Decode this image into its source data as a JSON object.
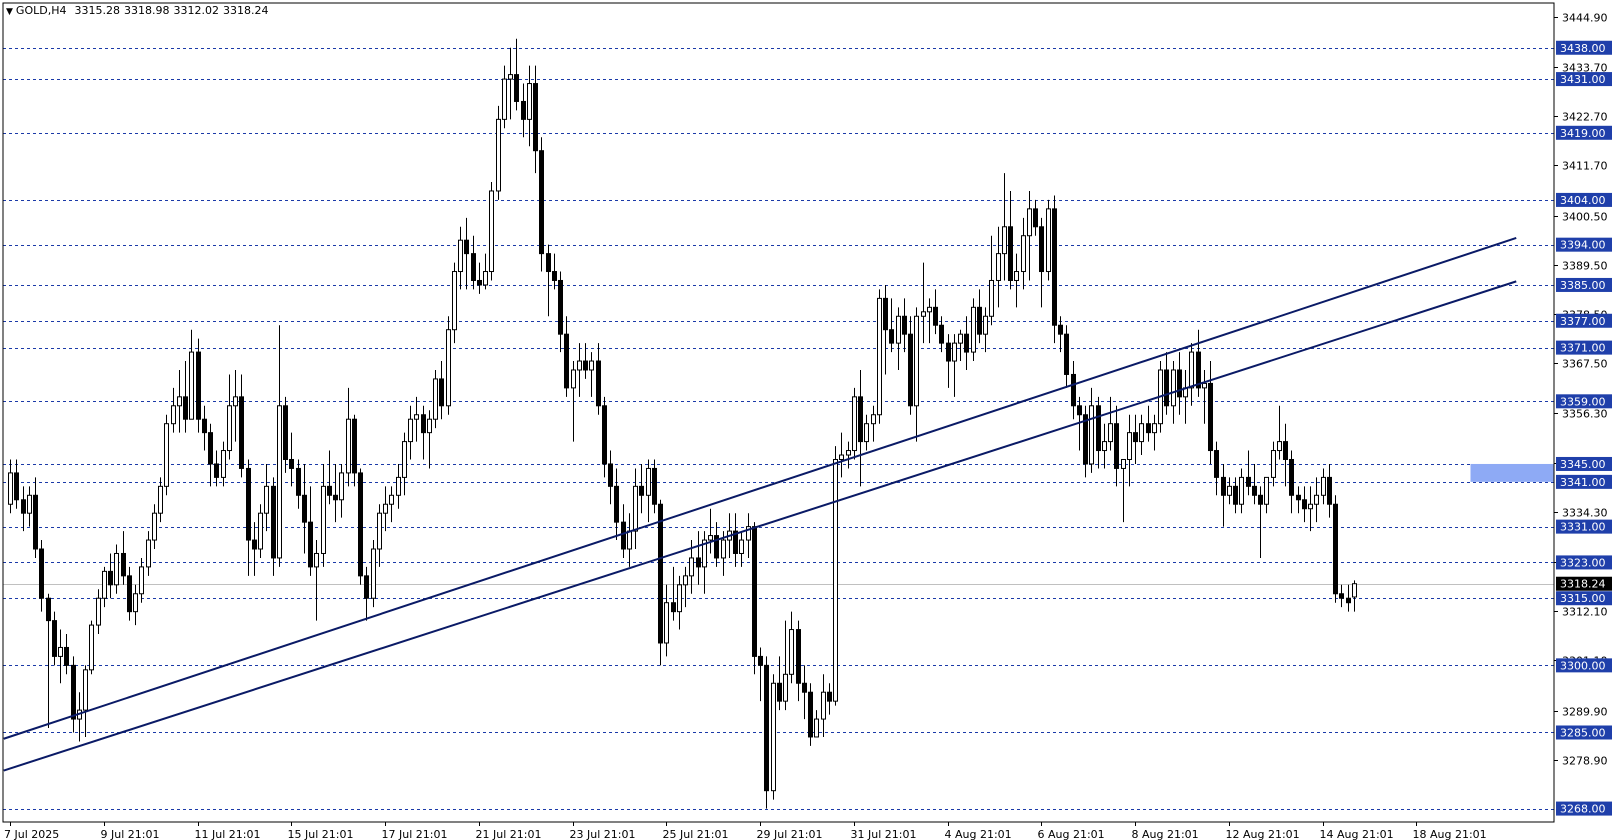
{
  "header": {
    "symbol": "GOLD,H4",
    "open": "3315.28",
    "high": "3318.98",
    "low": "3312.02",
    "close": "3318.24"
  },
  "chart_data": {
    "type": "candlestick",
    "ylim": [
      3265.0,
      3448.0
    ],
    "price_ticks": [
      "3444.90",
      "3433.70",
      "3422.70",
      "3411.70",
      "3400.50",
      "3389.50",
      "3378.50",
      "3367.50",
      "3356.30",
      "3345.30",
      "3334.30",
      "3323.20",
      "3312.10",
      "3301.10",
      "3289.90",
      "3278.90"
    ],
    "levels": [
      3438.0,
      3431.0,
      3419.0,
      3404.0,
      3394.0,
      3385.0,
      3377.0,
      3371.0,
      3359.0,
      3345.0,
      3341.0,
      3331.0,
      3323.0,
      3315.0,
      3300.0,
      3285.0,
      3268.0
    ],
    "level_labels": [
      "3438.00",
      "3431.00",
      "3419.00",
      "3404.00",
      "3394.00",
      "3385.00",
      "3377.00",
      "3371.00",
      "3359.00",
      "3345.00",
      "3341.00",
      "3331.00",
      "3323.00",
      "3315.00",
      "3300.00",
      "3285.00",
      "3268.00"
    ],
    "current_price": 3318.24,
    "current_label": "3318.24",
    "zone": {
      "from": 3341.0,
      "to": 3345.0,
      "start_index": 234
    },
    "dates": [
      "7 Jul 2025",
      "9 Jul 21:01",
      "11 Jul 21:01",
      "15 Jul 21:01",
      "17 Jul 21:01",
      "21 Jul 21:01",
      "23 Jul 21:01",
      "25 Jul 21:01",
      "29 Jul 21:01",
      "31 Jul 21:01",
      "4 Aug 21:01",
      "6 Aug 21:01",
      "8 Aug 21:01",
      "12 Aug 21:01",
      "14 Aug 21:01",
      "18 Aug 21:01"
    ],
    "date_index": [
      0,
      15,
      30,
      45,
      60,
      75,
      90,
      105,
      120,
      135,
      150,
      165,
      180,
      195,
      210,
      225
    ],
    "trendlines": [
      {
        "p1": {
          "i": -1,
          "price": 3283.6
        },
        "p2": {
          "i": 241,
          "price": 3395.5
        }
      },
      {
        "p1": {
          "i": -1,
          "price": 3276.5
        },
        "p2": {
          "i": 241,
          "price": 3385.8
        }
      }
    ],
    "candles_ohlc": [
      [
        3336.0,
        3346.0,
        3334.0,
        3343.0
      ],
      [
        3343.0,
        3346.0,
        3335.0,
        3337.0
      ],
      [
        3337.0,
        3340.0,
        3330.0,
        3334.0
      ],
      [
        3334.0,
        3340.0,
        3331.0,
        3338.0
      ],
      [
        3338.0,
        3342.0,
        3324.0,
        3326.0
      ],
      [
        3326.0,
        3328.0,
        3312.0,
        3315.0
      ],
      [
        3315.0,
        3316.0,
        3286.0,
        3310.0
      ],
      [
        3310.0,
        3312.0,
        3300.0,
        3302.0
      ],
      [
        3302.0,
        3308.0,
        3296.0,
        3304.0
      ],
      [
        3304.0,
        3307.0,
        3298.0,
        3300.0
      ],
      [
        3300.0,
        3302.0,
        3285.0,
        3288.0
      ],
      [
        3288.0,
        3294.0,
        3283.0,
        3290.0
      ],
      [
        3290.0,
        3300.0,
        3284.0,
        3299.0
      ],
      [
        3299.0,
        3310.0,
        3298.0,
        3309.0
      ],
      [
        3309.0,
        3317.0,
        3307.0,
        3315.0
      ],
      [
        3315.0,
        3322.0,
        3313.0,
        3321.0
      ],
      [
        3321.0,
        3325.0,
        3315.0,
        3318.0
      ],
      [
        3318.0,
        3327.0,
        3316.0,
        3325.0
      ],
      [
        3325.0,
        3330.0,
        3318.0,
        3320.0
      ],
      [
        3320.0,
        3322.0,
        3310.0,
        3312.0
      ],
      [
        3312.0,
        3318.0,
        3309.0,
        3316.0
      ],
      [
        3316.0,
        3324.0,
        3314.0,
        3322.0
      ],
      [
        3322.0,
        3330.0,
        3320.0,
        3328.0
      ],
      [
        3328.0,
        3336.0,
        3326.0,
        3334.0
      ],
      [
        3334.0,
        3342.0,
        3332.0,
        3340.0
      ],
      [
        3340.0,
        3356.0,
        3338.0,
        3354.0
      ],
      [
        3354.0,
        3362.0,
        3352.0,
        3358.0
      ],
      [
        3358.0,
        3366.0,
        3352.0,
        3360.0
      ],
      [
        3360.0,
        3368.0,
        3352.0,
        3355.0
      ],
      [
        3355.0,
        3375.0,
        3355.0,
        3370.0
      ],
      [
        3370.0,
        3373.0,
        3352.0,
        3355.0
      ],
      [
        3355.0,
        3358.0,
        3348.0,
        3352.0
      ],
      [
        3352.0,
        3354.0,
        3340.0,
        3345.0
      ],
      [
        3345.0,
        3348.0,
        3340.0,
        3342.0
      ],
      [
        3342.0,
        3350.0,
        3340.0,
        3348.0
      ],
      [
        3348.0,
        3365.0,
        3346.0,
        3358.0
      ],
      [
        3358.0,
        3366.0,
        3350.0,
        3360.0
      ],
      [
        3360.0,
        3365.0,
        3342.0,
        3344.0
      ],
      [
        3344.0,
        3346.0,
        3320.0,
        3328.0
      ],
      [
        3328.0,
        3332.0,
        3320.0,
        3326.0
      ],
      [
        3326.0,
        3336.0,
        3324.0,
        3334.0
      ],
      [
        3334.0,
        3345.0,
        3330.0,
        3340.0
      ],
      [
        3340.0,
        3342.0,
        3320.0,
        3324.0
      ],
      [
        3324.0,
        3376.0,
        3322.0,
        3358.0
      ],
      [
        3358.0,
        3360.0,
        3343.0,
        3346.0
      ],
      [
        3346.0,
        3352.0,
        3340.0,
        3344.0
      ],
      [
        3344.0,
        3346.0,
        3335.0,
        3338.0
      ],
      [
        3338.0,
        3345.0,
        3325.0,
        3332.0
      ],
      [
        3332.0,
        3340.0,
        3320.0,
        3322.0
      ],
      [
        3322.0,
        3328.0,
        3310.0,
        3325.0
      ],
      [
        3325.0,
        3345.0,
        3322.0,
        3340.0
      ],
      [
        3340.0,
        3348.0,
        3336.0,
        3338.0
      ],
      [
        3338.0,
        3345.0,
        3332.0,
        3337.0
      ],
      [
        3337.0,
        3345.0,
        3333.0,
        3343.0
      ],
      [
        3343.0,
        3362.0,
        3340.0,
        3355.0
      ],
      [
        3355.0,
        3356.0,
        3340.0,
        3343.0
      ],
      [
        3343.0,
        3344.0,
        3318.0,
        3320.0
      ],
      [
        3320.0,
        3322.0,
        3310.0,
        3315.0
      ],
      [
        3315.0,
        3328.0,
        3313.0,
        3326.0
      ],
      [
        3326.0,
        3336.0,
        3322.0,
        3334.0
      ],
      [
        3334.0,
        3340.0,
        3330.0,
        3336.0
      ],
      [
        3336.0,
        3340.0,
        3332.0,
        3338.0
      ],
      [
        3338.0,
        3345.0,
        3335.0,
        3342.0
      ],
      [
        3342.0,
        3352.0,
        3338.0,
        3350.0
      ],
      [
        3350.0,
        3358.0,
        3346.0,
        3355.0
      ],
      [
        3355.0,
        3360.0,
        3350.0,
        3356.0
      ],
      [
        3356.0,
        3358.0,
        3346.0,
        3352.0
      ],
      [
        3352.0,
        3357.0,
        3344.0,
        3355.0
      ],
      [
        3355.0,
        3366.0,
        3353.0,
        3364.0
      ],
      [
        3364.0,
        3368.0,
        3355.0,
        3358.0
      ],
      [
        3358.0,
        3378.0,
        3356.0,
        3375.0
      ],
      [
        3375.0,
        3390.0,
        3372.0,
        3388.0
      ],
      [
        3388.0,
        3398.0,
        3384.0,
        3395.0
      ],
      [
        3395.0,
        3400.0,
        3384.0,
        3392.0
      ],
      [
        3392.0,
        3396.0,
        3384.0,
        3386.0
      ],
      [
        3386.0,
        3390.0,
        3383.0,
        3385.0
      ],
      [
        3385.0,
        3392.0,
        3384.0,
        3388.0
      ],
      [
        3388.0,
        3408.0,
        3386.0,
        3406.0
      ],
      [
        3406.0,
        3425.0,
        3404.0,
        3422.0
      ],
      [
        3422.0,
        3434.0,
        3420.0,
        3431.0
      ],
      [
        3431.0,
        3438.0,
        3422.0,
        3432.0
      ],
      [
        3432.0,
        3440.0,
        3424.0,
        3426.0
      ],
      [
        3426.0,
        3430.0,
        3418.0,
        3422.0
      ],
      [
        3422.0,
        3434.0,
        3416.0,
        3430.0
      ],
      [
        3430.0,
        3434.0,
        3410.0,
        3415.0
      ],
      [
        3415.0,
        3418.0,
        3388.0,
        3392.0
      ],
      [
        3392.0,
        3394.0,
        3378.0,
        3388.0
      ],
      [
        3388.0,
        3392.0,
        3384.0,
        3386.0
      ],
      [
        3386.0,
        3388.0,
        3370.0,
        3374.0
      ],
      [
        3374.0,
        3378.0,
        3360.0,
        3362.0
      ],
      [
        3362.0,
        3368.0,
        3350.0,
        3366.0
      ],
      [
        3366.0,
        3372.0,
        3360.0,
        3368.0
      ],
      [
        3368.0,
        3372.0,
        3364.0,
        3366.0
      ],
      [
        3366.0,
        3370.0,
        3360.0,
        3368.0
      ],
      [
        3368.0,
        3372.0,
        3356.0,
        3358.0
      ],
      [
        3358.0,
        3360.0,
        3342.0,
        3345.0
      ],
      [
        3345.0,
        3348.0,
        3336.0,
        3340.0
      ],
      [
        3340.0,
        3344.0,
        3328.0,
        3332.0
      ],
      [
        3332.0,
        3336.0,
        3324.0,
        3326.0
      ],
      [
        3326.0,
        3334.0,
        3322.0,
        3330.0
      ],
      [
        3330.0,
        3344.0,
        3326.0,
        3340.0
      ],
      [
        3340.0,
        3345.0,
        3334.0,
        3338.0
      ],
      [
        3338.0,
        3346.0,
        3332.0,
        3344.0
      ],
      [
        3344.0,
        3346.0,
        3334.0,
        3336.0
      ],
      [
        3336.0,
        3337.0,
        3300.0,
        3305.0
      ],
      [
        3305.0,
        3318.0,
        3302.0,
        3314.0
      ],
      [
        3314.0,
        3322.0,
        3310.0,
        3312.0
      ],
      [
        3312.0,
        3320.0,
        3308.0,
        3318.0
      ],
      [
        3318.0,
        3322.0,
        3313.0,
        3320.0
      ],
      [
        3320.0,
        3328.0,
        3316.0,
        3324.0
      ],
      [
        3324.0,
        3330.0,
        3318.0,
        3322.0
      ],
      [
        3322.0,
        3330.0,
        3316.0,
        3328.0
      ],
      [
        3328.0,
        3335.0,
        3325.0,
        3329.0
      ],
      [
        3329.0,
        3332.0,
        3322.0,
        3324.0
      ],
      [
        3324.0,
        3330.0,
        3320.0,
        3328.0
      ],
      [
        3328.0,
        3334.0,
        3324.0,
        3330.0
      ],
      [
        3330.0,
        3334.0,
        3322.0,
        3325.0
      ],
      [
        3325.0,
        3330.0,
        3322.0,
        3328.0
      ],
      [
        3328.0,
        3334.0,
        3324.0,
        3331.0
      ],
      [
        3331.0,
        3332.0,
        3298.0,
        3302.0
      ],
      [
        3302.0,
        3304.0,
        3292.0,
        3300.0
      ],
      [
        3300.0,
        3302.0,
        3268.0,
        3272.0
      ],
      [
        3272.0,
        3298.0,
        3270.0,
        3296.0
      ],
      [
        3296.0,
        3302.0,
        3290.0,
        3292.0
      ],
      [
        3292.0,
        3310.0,
        3290.0,
        3298.0
      ],
      [
        3298.0,
        3312.0,
        3296.0,
        3308.0
      ],
      [
        3308.0,
        3310.0,
        3292.0,
        3296.0
      ],
      [
        3296.0,
        3300.0,
        3288.0,
        3294.0
      ],
      [
        3294.0,
        3296.0,
        3282.0,
        3284.0
      ],
      [
        3284.0,
        3290.0,
        3284.0,
        3288.0
      ],
      [
        3288.0,
        3298.0,
        3284.0,
        3294.0
      ],
      [
        3294.0,
        3296.0,
        3289.0,
        3292.0
      ],
      [
        3292.0,
        3349.0,
        3291.0,
        3346.0
      ],
      [
        3346.0,
        3352.0,
        3342.0,
        3347.0
      ],
      [
        3347.0,
        3350.0,
        3344.0,
        3348.0
      ],
      [
        3348.0,
        3362.0,
        3346.0,
        3360.0
      ],
      [
        3360.0,
        3366.0,
        3340.0,
        3350.0
      ],
      [
        3350.0,
        3356.0,
        3348.0,
        3354.0
      ],
      [
        3354.0,
        3358.0,
        3350.0,
        3356.0
      ],
      [
        3356.0,
        3384.0,
        3354.0,
        3382.0
      ],
      [
        3382.0,
        3385.0,
        3365.0,
        3375.0
      ],
      [
        3375.0,
        3382.0,
        3370.0,
        3372.0
      ],
      [
        3372.0,
        3380.0,
        3366.0,
        3378.0
      ],
      [
        3378.0,
        3382.0,
        3370.0,
        3374.0
      ],
      [
        3374.0,
        3378.0,
        3356.0,
        3358.0
      ],
      [
        3358.0,
        3380.0,
        3350.0,
        3378.0
      ],
      [
        3378.0,
        3390.0,
        3372.0,
        3379.0
      ],
      [
        3379.0,
        3382.0,
        3372.0,
        3380.0
      ],
      [
        3380.0,
        3384.0,
        3374.0,
        3376.0
      ],
      [
        3376.0,
        3378.0,
        3370.0,
        3372.0
      ],
      [
        3372.0,
        3374.0,
        3362.0,
        3368.0
      ],
      [
        3368.0,
        3374.0,
        3360.0,
        3372.0
      ],
      [
        3372.0,
        3375.0,
        3368.0,
        3374.0
      ],
      [
        3374.0,
        3378.0,
        3366.0,
        3370.0
      ],
      [
        3370.0,
        3382.0,
        3368.0,
        3380.0
      ],
      [
        3380.0,
        3384.0,
        3372.0,
        3374.0
      ],
      [
        3374.0,
        3380.0,
        3370.0,
        3378.0
      ],
      [
        3378.0,
        3396.0,
        3376.0,
        3386.0
      ],
      [
        3386.0,
        3398.0,
        3380.0,
        3392.0
      ],
      [
        3392.0,
        3410.0,
        3386.0,
        3398.0
      ],
      [
        3398.0,
        3406.0,
        3384.0,
        3386.0
      ],
      [
        3386.0,
        3392.0,
        3380.0,
        3388.0
      ],
      [
        3388.0,
        3400.0,
        3384.0,
        3396.0
      ],
      [
        3396.0,
        3406.0,
        3386.0,
        3402.0
      ],
      [
        3402.0,
        3404.0,
        3396.0,
        3398.0
      ],
      [
        3398.0,
        3400.0,
        3380.0,
        3388.0
      ],
      [
        3388.0,
        3404.0,
        3386.0,
        3402.0
      ],
      [
        3402.0,
        3405.0,
        3372.0,
        3376.0
      ],
      [
        3376.0,
        3378.0,
        3370.0,
        3374.0
      ],
      [
        3374.0,
        3376.0,
        3362.0,
        3365.0
      ],
      [
        3365.0,
        3368.0,
        3355.0,
        3358.0
      ],
      [
        3358.0,
        3360.0,
        3348.0,
        3356.0
      ],
      [
        3356.0,
        3358.0,
        3342.0,
        3345.0
      ],
      [
        3345.0,
        3362.0,
        3343.0,
        3358.0
      ],
      [
        3358.0,
        3360.0,
        3344.0,
        3348.0
      ],
      [
        3348.0,
        3354.0,
        3344.0,
        3350.0
      ],
      [
        3350.0,
        3360.0,
        3348.0,
        3354.0
      ],
      [
        3354.0,
        3358.0,
        3340.0,
        3344.0
      ],
      [
        3344.0,
        3346.0,
        3332.0,
        3346.0
      ],
      [
        3346.0,
        3356.0,
        3340.0,
        3352.0
      ],
      [
        3352.0,
        3356.0,
        3345.0,
        3350.0
      ],
      [
        3350.0,
        3356.0,
        3347.0,
        3354.0
      ],
      [
        3354.0,
        3358.0,
        3350.0,
        3352.0
      ],
      [
        3352.0,
        3356.0,
        3348.0,
        3354.0
      ],
      [
        3354.0,
        3368.0,
        3352.0,
        3366.0
      ],
      [
        3366.0,
        3370.0,
        3356.0,
        3358.0
      ],
      [
        3358.0,
        3368.0,
        3354.0,
        3366.0
      ],
      [
        3366.0,
        3370.0,
        3356.0,
        3360.0
      ],
      [
        3360.0,
        3366.0,
        3354.0,
        3362.0
      ],
      [
        3362.0,
        3372.0,
        3358.0,
        3370.0
      ],
      [
        3370.0,
        3375.0,
        3360.0,
        3362.0
      ],
      [
        3362.0,
        3366.0,
        3354.0,
        3363.0
      ],
      [
        3363.0,
        3368.0,
        3345.0,
        3348.0
      ],
      [
        3348.0,
        3350.0,
        3338.0,
        3342.0
      ],
      [
        3342.0,
        3345.0,
        3331.0,
        3338.0
      ],
      [
        3338.0,
        3342.0,
        3336.0,
        3340.0
      ],
      [
        3340.0,
        3342.0,
        3334.0,
        3336.0
      ],
      [
        3336.0,
        3344.0,
        3334.0,
        3342.0
      ],
      [
        3342.0,
        3348.0,
        3338.0,
        3340.0
      ],
      [
        3340.0,
        3345.0,
        3336.0,
        3338.0
      ],
      [
        3338.0,
        3340.0,
        3324.0,
        3336.0
      ],
      [
        3336.0,
        3342.0,
        3334.0,
        3342.0
      ],
      [
        3342.0,
        3350.0,
        3340.0,
        3348.0
      ],
      [
        3348.0,
        3358.0,
        3346.0,
        3350.0
      ],
      [
        3350.0,
        3354.0,
        3340.0,
        3346.0
      ],
      [
        3346.0,
        3348.0,
        3334.0,
        3338.0
      ],
      [
        3338.0,
        3340.0,
        3334.0,
        3337.0
      ],
      [
        3337.0,
        3340.0,
        3332.0,
        3335.0
      ],
      [
        3335.0,
        3340.0,
        3330.0,
        3336.0
      ],
      [
        3336.0,
        3342.0,
        3332.0,
        3338.0
      ],
      [
        3338.0,
        3344.0,
        3336.0,
        3342.0
      ],
      [
        3342.0,
        3345.0,
        3333.0,
        3336.0
      ],
      [
        3336.0,
        3338.0,
        3314.0,
        3316.0
      ],
      [
        3316.0,
        3318.0,
        3313.0,
        3315.0
      ],
      [
        3315.0,
        3318.0,
        3312.0,
        3314.0
      ],
      [
        3315.28,
        3318.98,
        3312.02,
        3318.24
      ]
    ]
  }
}
